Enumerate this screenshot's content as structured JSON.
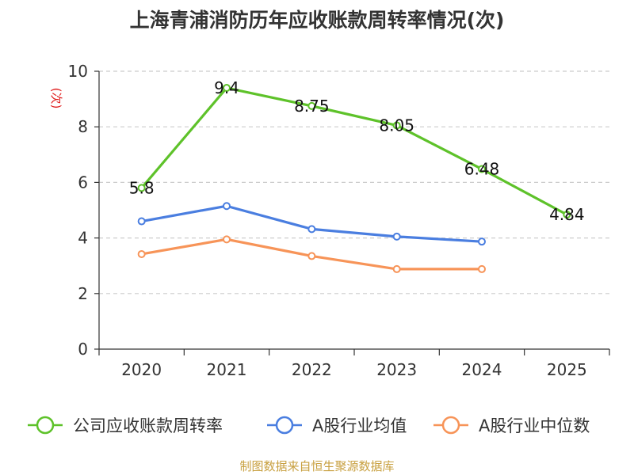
{
  "chart_data": {
    "type": "line",
    "title": "上海青浦消防历年应收账款周转率情况(次)",
    "ylabel": "(次)",
    "xlabel": "",
    "categories": [
      "2020",
      "2021",
      "2022",
      "2023",
      "2024",
      "2025"
    ],
    "ylim": [
      0,
      10
    ],
    "yticks": [
      0,
      2,
      4,
      6,
      8,
      10
    ],
    "grid": true,
    "legend_position": "bottom",
    "series": [
      {
        "name": "公司应收账款周转率",
        "color": "#5ec22a",
        "values": [
          5.8,
          9.4,
          8.75,
          8.05,
          6.48,
          4.84
        ],
        "labels": [
          "5.8",
          "9.4",
          "8.75",
          "8.05",
          "6.48",
          "4.84"
        ]
      },
      {
        "name": "A股行业均值",
        "color": "#4a7ee0",
        "values": [
          4.6,
          5.15,
          4.32,
          4.05,
          3.87,
          null
        ]
      },
      {
        "name": "A股行业中位数",
        "color": "#f79458",
        "values": [
          3.42,
          3.95,
          3.35,
          2.88,
          2.88,
          null
        ]
      }
    ],
    "source": "制图数据来自恒生聚源数据库"
  }
}
